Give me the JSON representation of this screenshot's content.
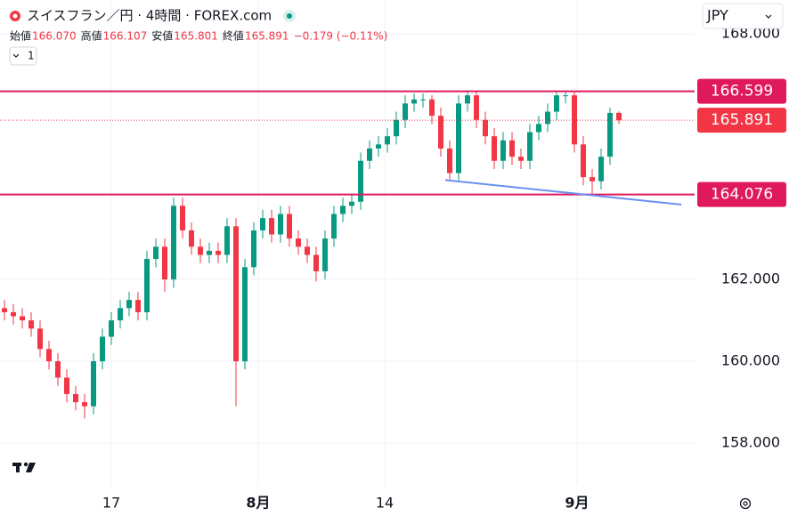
{
  "header": {
    "title": "スイスフラン／円 · 4時間 · FOREX.com",
    "ohlc": [
      {
        "label": "始値",
        "value": "166.070"
      },
      {
        "label": "高値",
        "value": "166.107"
      },
      {
        "label": "安値",
        "value": "165.801"
      },
      {
        "label": "終値",
        "value": "165.891"
      }
    ],
    "change": "−0.179 (−0.11%)",
    "indicator_button": "1",
    "currency": "JPY"
  },
  "chart_data": {
    "type": "candlestick",
    "open": [
      161.3,
      161.2,
      161.1,
      161.0,
      160.8,
      160.3,
      160.0,
      159.6,
      159.2,
      159.0,
      158.9,
      160.0,
      160.6,
      161.0,
      161.3,
      161.5,
      161.2,
      162.5,
      162.8,
      162.0,
      163.8,
      163.2,
      162.8,
      162.6,
      162.7,
      162.6,
      163.3,
      160.0,
      162.3,
      163.2,
      163.5,
      163.1,
      163.6,
      163.0,
      162.8,
      162.6,
      162.2,
      163.0,
      163.6,
      163.8,
      163.9,
      164.9,
      165.2,
      165.3,
      165.5,
      165.9,
      166.3,
      166.4,
      166.4,
      166.0,
      165.2,
      164.6,
      166.3,
      166.5,
      165.9,
      165.5,
      164.9,
      165.4,
      165.0,
      164.9,
      165.6,
      165.8,
      166.1,
      166.5,
      166.5,
      165.3,
      164.5,
      164.4,
      165.0,
      166.07
    ],
    "high": [
      161.5,
      161.4,
      161.3,
      161.2,
      161.0,
      160.5,
      160.2,
      159.8,
      159.4,
      159.2,
      160.2,
      160.8,
      161.2,
      161.5,
      161.7,
      161.7,
      162.7,
      163.0,
      163.0,
      164.0,
      164.0,
      163.4,
      163.0,
      162.9,
      162.9,
      163.5,
      163.5,
      162.5,
      163.4,
      163.7,
      163.7,
      163.8,
      163.8,
      163.2,
      163.0,
      162.8,
      163.2,
      163.8,
      164.0,
      164.1,
      165.1,
      165.4,
      165.5,
      165.7,
      166.1,
      166.5,
      166.55,
      166.55,
      166.5,
      166.2,
      165.4,
      166.5,
      166.62,
      166.6,
      166.1,
      165.7,
      165.6,
      165.6,
      165.2,
      165.8,
      166.0,
      166.3,
      166.6,
      166.62,
      166.6,
      165.5,
      164.7,
      165.2,
      166.2,
      166.107
    ],
    "low": [
      161.0,
      160.9,
      160.8,
      160.6,
      160.1,
      159.8,
      159.4,
      159.0,
      158.8,
      158.6,
      158.7,
      159.8,
      160.4,
      160.8,
      161.1,
      161.0,
      161.0,
      162.3,
      161.7,
      161.8,
      163.0,
      162.6,
      162.4,
      162.4,
      162.4,
      162.4,
      158.9,
      159.8,
      162.1,
      163.0,
      162.9,
      162.9,
      162.8,
      162.6,
      162.4,
      161.95,
      162.0,
      162.8,
      163.4,
      163.6,
      163.7,
      164.7,
      165.0,
      165.1,
      165.3,
      165.7,
      166.1,
      166.2,
      165.8,
      165.0,
      164.45,
      164.4,
      166.1,
      165.7,
      165.3,
      164.7,
      164.7,
      164.8,
      164.7,
      164.7,
      165.4,
      165.6,
      165.9,
      166.3,
      165.1,
      164.3,
      164.1,
      164.2,
      164.8,
      165.801
    ],
    "close": [
      161.2,
      161.1,
      161.0,
      160.8,
      160.3,
      160.0,
      159.6,
      159.2,
      159.0,
      158.9,
      160.0,
      160.6,
      161.0,
      161.3,
      161.5,
      161.2,
      162.5,
      162.8,
      162.0,
      163.8,
      163.2,
      162.8,
      162.6,
      162.7,
      162.6,
      163.3,
      160.0,
      162.3,
      163.2,
      163.5,
      163.1,
      163.6,
      163.0,
      162.8,
      162.6,
      162.2,
      163.0,
      163.6,
      163.8,
      163.9,
      164.9,
      165.2,
      165.3,
      165.5,
      165.9,
      166.3,
      166.4,
      166.4,
      166.0,
      165.2,
      164.6,
      166.3,
      166.5,
      165.9,
      165.5,
      164.9,
      165.4,
      165.0,
      164.9,
      165.6,
      165.8,
      166.1,
      166.5,
      166.5,
      165.3,
      164.5,
      164.4,
      165.0,
      166.07,
      165.891
    ],
    "colors": {
      "up": "#089981",
      "down": "#f23645"
    },
    "xlim": [
      -0.5,
      77.5
    ],
    "xticks": [
      {
        "value": 12,
        "label": "17"
      },
      {
        "value": 28.5,
        "label": "8月"
      },
      {
        "value": 42.7,
        "label": "14"
      },
      {
        "value": 64.3,
        "label": "9月"
      }
    ],
    "ylim": [
      156.98,
      168.83
    ],
    "yticks": [
      {
        "value": 158,
        "label": "158.000"
      },
      {
        "value": 160,
        "label": "160.000"
      },
      {
        "value": 162,
        "label": "162.000"
      },
      {
        "value": 168,
        "label": "168.000"
      }
    ],
    "hlines": [
      {
        "value": 166.599,
        "color": "#e0195c"
      },
      {
        "value": 164.076,
        "color": "#e0195c"
      }
    ],
    "last_price": {
      "value": 165.891,
      "color": "#f23645"
    },
    "trendline": {
      "x": [
        49.5,
        76
      ],
      "y": [
        164.43,
        163.83
      ],
      "color": "#6b8ff0"
    },
    "grid": true
  }
}
